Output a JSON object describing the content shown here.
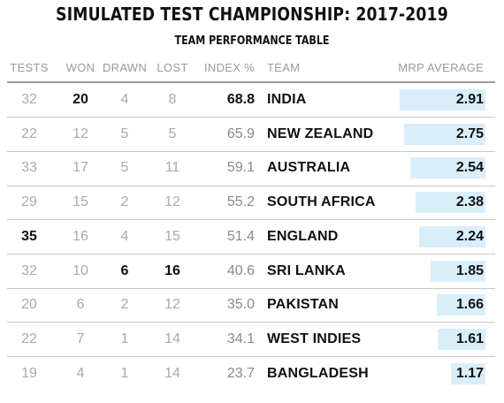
{
  "title": "SIMULATED TEST CHAMPIONSHIP: 2017-2019",
  "subtitle": "TEAM PERFORMANCE TABLE",
  "columns": [
    "TESTS",
    "WON",
    "DRAWN",
    "LOST",
    "INDEX %",
    "TEAM",
    "MRP AVERAGE"
  ],
  "colors": {
    "bar": "#d9eefb",
    "muted_text": "#aaaaaa",
    "strong_text": "#111111",
    "header_text": "#9a9a9a"
  },
  "chart_data": {
    "type": "table",
    "title": "SIMULATED TEST CHAMPIONSHIP: 2017-2019",
    "subtitle": "TEAM PERFORMANCE TABLE",
    "columns": [
      "TESTS",
      "WON",
      "DRAWN",
      "LOST",
      "INDEX %",
      "TEAM",
      "MRP AVERAGE"
    ],
    "mrp_max": 2.91,
    "rows": [
      {
        "tests": "32",
        "won": "20",
        "drawn": "4",
        "lost": "8",
        "index": "68.8",
        "team": "INDIA",
        "mrp": "2.91",
        "mrp_value": 2.91,
        "bold": [
          "won",
          "index"
        ]
      },
      {
        "tests": "22",
        "won": "12",
        "drawn": "5",
        "lost": "5",
        "index": "65.9",
        "team": "NEW ZEALAND",
        "mrp": "2.75",
        "mrp_value": 2.75,
        "bold": []
      },
      {
        "tests": "33",
        "won": "17",
        "drawn": "5",
        "lost": "11",
        "index": "59.1",
        "team": "AUSTRALIA",
        "mrp": "2.54",
        "mrp_value": 2.54,
        "bold": []
      },
      {
        "tests": "29",
        "won": "15",
        "drawn": "2",
        "lost": "12",
        "index": "55.2",
        "team": "SOUTH AFRICA",
        "mrp": "2.38",
        "mrp_value": 2.38,
        "bold": []
      },
      {
        "tests": "35",
        "won": "16",
        "drawn": "4",
        "lost": "15",
        "index": "51.4",
        "team": "ENGLAND",
        "mrp": "2.24",
        "mrp_value": 2.24,
        "bold": [
          "tests"
        ]
      },
      {
        "tests": "32",
        "won": "10",
        "drawn": "6",
        "lost": "16",
        "index": "40.6",
        "team": "SRI LANKA",
        "mrp": "1.85",
        "mrp_value": 1.85,
        "bold": [
          "drawn",
          "lost"
        ]
      },
      {
        "tests": "20",
        "won": "6",
        "drawn": "2",
        "lost": "12",
        "index": "35.0",
        "team": "PAKISTAN",
        "mrp": "1.66",
        "mrp_value": 1.66,
        "bold": []
      },
      {
        "tests": "22",
        "won": "7",
        "drawn": "1",
        "lost": "14",
        "index": "34.1",
        "team": "WEST INDIES",
        "mrp": "1.61",
        "mrp_value": 1.61,
        "bold": []
      },
      {
        "tests": "19",
        "won": "4",
        "drawn": "1",
        "lost": "14",
        "index": "23.7",
        "team": "BANGLADESH",
        "mrp": "1.17",
        "mrp_value": 1.17,
        "bold": []
      }
    ]
  }
}
